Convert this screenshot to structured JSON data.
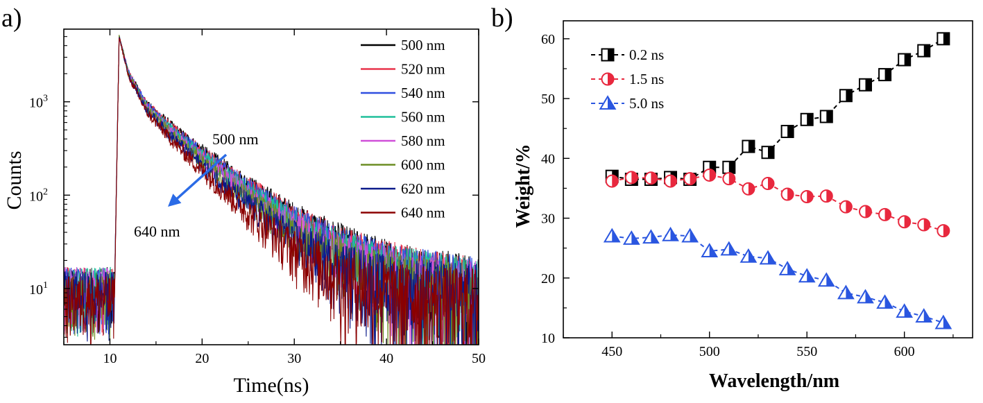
{
  "panels": {
    "a_label": "a)",
    "b_label": "b)"
  },
  "chart_data": [
    {
      "type": "line",
      "panel": "a",
      "xlabel": "Time(ns)",
      "ylabel": "Counts",
      "yscale": "log",
      "xlim": [
        5,
        50
      ],
      "ylim": [
        2.5,
        6000
      ],
      "x_ticks": [
        10,
        20,
        30,
        40,
        50
      ],
      "y_ticks": [
        {
          "value": 10,
          "base": "10",
          "exp": "1"
        },
        {
          "value": 100,
          "base": "10",
          "exp": "2"
        },
        {
          "value": 1000,
          "base": "10",
          "exp": "3"
        }
      ],
      "rise_start_ns": 10.5,
      "peak": {
        "x": 11,
        "y": 5000
      },
      "series": [
        {
          "name": "500 nm",
          "color": "#000000",
          "background": 10,
          "decay": [
            [
              11,
              5000
            ],
            [
              12,
              2100
            ],
            [
              14,
              950
            ],
            [
              17,
              520
            ],
            [
              20,
              300
            ],
            [
              25,
              130
            ],
            [
              30,
              60
            ],
            [
              35,
              32
            ],
            [
              40,
              20
            ],
            [
              45,
              15
            ],
            [
              50,
              12
            ]
          ]
        },
        {
          "name": "520 nm",
          "color": "#e8334a",
          "background": 10,
          "decay": [
            [
              11,
              5000
            ],
            [
              12,
              2080
            ],
            [
              14,
              940
            ],
            [
              17,
              505
            ],
            [
              20,
              290
            ],
            [
              25,
              125
            ],
            [
              30,
              57
            ],
            [
              35,
              30
            ],
            [
              40,
              19
            ],
            [
              45,
              14
            ],
            [
              50,
              11
            ]
          ]
        },
        {
          "name": "540 nm",
          "color": "#2f4fe0",
          "background": 10,
          "decay": [
            [
              11,
              5000
            ],
            [
              12,
              2060
            ],
            [
              14,
              925
            ],
            [
              17,
              490
            ],
            [
              20,
              280
            ],
            [
              25,
              118
            ],
            [
              30,
              54
            ],
            [
              35,
              28
            ],
            [
              40,
              18
            ],
            [
              45,
              14
            ],
            [
              50,
              11
            ]
          ]
        },
        {
          "name": "560 nm",
          "color": "#1fbf9a",
          "background": 10,
          "decay": [
            [
              11,
              5000
            ],
            [
              12,
              2040
            ],
            [
              14,
              905
            ],
            [
              17,
              470
            ],
            [
              20,
              265
            ],
            [
              25,
              110
            ],
            [
              30,
              50
            ],
            [
              35,
              26
            ],
            [
              40,
              17
            ],
            [
              45,
              13
            ],
            [
              50,
              11
            ]
          ]
        },
        {
          "name": "580 nm",
          "color": "#d04fd8",
          "background": 10,
          "decay": [
            [
              11,
              5000
            ],
            [
              12,
              2010
            ],
            [
              14,
              880
            ],
            [
              17,
              450
            ],
            [
              20,
              250
            ],
            [
              25,
              102
            ],
            [
              30,
              46
            ],
            [
              35,
              24
            ],
            [
              40,
              16
            ],
            [
              45,
              12
            ],
            [
              50,
              10
            ]
          ]
        },
        {
          "name": "600 nm",
          "color": "#6b8e23",
          "background": 9,
          "decay": [
            [
              11,
              5000
            ],
            [
              12,
              1980
            ],
            [
              14,
              850
            ],
            [
              17,
              425
            ],
            [
              20,
              232
            ],
            [
              25,
              92
            ],
            [
              30,
              41
            ],
            [
              35,
              21
            ],
            [
              40,
              14
            ],
            [
              45,
              11
            ],
            [
              50,
              9
            ]
          ]
        },
        {
          "name": "620 nm",
          "color": "#0a1a8a",
          "background": 9,
          "decay": [
            [
              11,
              5000
            ],
            [
              12,
              1940
            ],
            [
              14,
              815
            ],
            [
              17,
              395
            ],
            [
              20,
              210
            ],
            [
              25,
              80
            ],
            [
              30,
              35
            ],
            [
              35,
              18
            ],
            [
              40,
              12
            ],
            [
              45,
              10
            ],
            [
              50,
              9
            ]
          ]
        },
        {
          "name": "640 nm",
          "color": "#8b0000",
          "background": 8,
          "decay": [
            [
              11,
              5000
            ],
            [
              12,
              1890
            ],
            [
              14,
              770
            ],
            [
              17,
              360
            ],
            [
              20,
              185
            ],
            [
              25,
              66
            ],
            [
              30,
              27
            ],
            [
              35,
              14
            ],
            [
              40,
              10
            ],
            [
              45,
              8
            ],
            [
              50,
              8
            ]
          ]
        }
      ],
      "annotations": {
        "arrow_start_label": "500 nm",
        "arrow_end_label": "640 nm"
      }
    },
    {
      "type": "scatter",
      "panel": "b",
      "xlabel": "Wavelength/nm",
      "ylabel": "Weight/%",
      "xlim": [
        425,
        635
      ],
      "ylim": [
        10,
        63
      ],
      "x_ticks": [
        450,
        500,
        550,
        600
      ],
      "y_ticks": [
        10,
        20,
        30,
        40,
        50,
        60
      ],
      "x": [
        450,
        460,
        470,
        480,
        490,
        500,
        510,
        520,
        530,
        540,
        550,
        560,
        570,
        580,
        590,
        600,
        610,
        620
      ],
      "series": [
        {
          "name": "0.2 ns",
          "marker": "half-square",
          "color": "#000000",
          "values": [
            37,
            36.5,
            36.5,
            36.8,
            36.5,
            38.5,
            38.5,
            42,
            41,
            44.5,
            46.5,
            47,
            50.5,
            52.3,
            54,
            56.5,
            58,
            60
          ]
        },
        {
          "name": "1.5 ns",
          "marker": "half-circle",
          "color": "#e8283e",
          "values": [
            36.2,
            36.8,
            36.7,
            36.2,
            36.6,
            37.2,
            36.6,
            34.9,
            35.8,
            34,
            33.6,
            33.7,
            31.9,
            31.1,
            30.6,
            29.4,
            28.9,
            27.9
          ]
        },
        {
          "name": "5.0 ns",
          "marker": "half-triangle",
          "color": "#2a56e0",
          "values": [
            27,
            26.6,
            26.8,
            27.2,
            27,
            24.5,
            24.8,
            23.6,
            23.3,
            21.5,
            20.3,
            19.6,
            17.5,
            16.8,
            15.9,
            14.4,
            13.6,
            12.5
          ]
        }
      ]
    }
  ]
}
